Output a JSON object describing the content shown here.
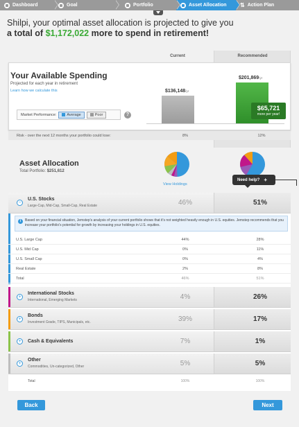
{
  "nav": {
    "steps": [
      {
        "label": "Dashboard",
        "active": false
      },
      {
        "label": "Goal",
        "active": false
      },
      {
        "label": "Portfolio",
        "active": false
      },
      {
        "label": "Asset Allocation",
        "active": true
      },
      {
        "label": "Action Plan",
        "active": false
      }
    ]
  },
  "headline": {
    "line1": "Shilpi, your optimal asset allocation is projected to give you",
    "prefix": "a total of ",
    "amount": "$1,172,022",
    "suffix": " more to spend in retirement!"
  },
  "columns": {
    "current": "Current",
    "recommended": "Recommended"
  },
  "spending": {
    "title": "Your Available Spending",
    "subtitle": "Projected for each year in retirement",
    "link": "Learn how we calculate this",
    "market_label": "Market Performance:",
    "market_options": [
      "Average",
      "Poor"
    ],
    "market_selected": "Average",
    "current_value": "$136,148",
    "recommended_value": "$201,869",
    "unit": "/yr",
    "more_amount": "$65,721",
    "more_text": "more per year!",
    "risk_label": "Risk - over the next 12 months your portfolio could lose:",
    "risk_current": "8%",
    "risk_recommended": "12%"
  },
  "allocation": {
    "title": "Asset Allocation",
    "total_label": "Total Portfolio:",
    "total_value": "$251,612",
    "view_holdings": "View Holdings",
    "need_help": "Need help?",
    "pie_colors": [
      "#3498db",
      "#f39c12",
      "#9b59b6",
      "#8bc34a",
      "#bdbdbd",
      "#c0178a"
    ]
  },
  "us_stocks": {
    "name": "U.S. Stocks",
    "sub": "Large-Cap, Mid-Cap, Small-Cap, Real Estate",
    "current": "46%",
    "recommended": "51%",
    "info": "Based on your financial situation, Jemstep's analysis of your current portfolio shows that it's not weighted heavily enough in U.S. equities. Jemstep recommends that you increase your portfolio's potential for growth by increasing your holdings in U.S. equities.",
    "rows": [
      {
        "name": "U.S. Large Cap",
        "current": "44%",
        "recommended": "28%"
      },
      {
        "name": "U.S. Mid Cap",
        "current": "0%",
        "recommended": "11%"
      },
      {
        "name": "U.S. Small Cap",
        "current": "0%",
        "recommended": "4%"
      },
      {
        "name": "Real Estate",
        "current": "2%",
        "recommended": "8%"
      },
      {
        "name": "Total",
        "current": "46%",
        "recommended": "51%"
      }
    ]
  },
  "categories": [
    {
      "name": "International Stocks",
      "sub": "International, Emerging Markets",
      "current": "4%",
      "recommended": "26%",
      "color": "#c0178a"
    },
    {
      "name": "Bonds",
      "sub": "Investment Grade, TIPS, Municipals, etc.",
      "current": "39%",
      "recommended": "17%",
      "color": "#f39c12"
    },
    {
      "name": "Cash & Equivalents",
      "sub": "",
      "current": "7%",
      "recommended": "1%",
      "color": "#8bc34a"
    },
    {
      "name": "Other",
      "sub": "Commodities, Un-categorized, Other",
      "current": "5%",
      "recommended": "5%",
      "color": "#bdbdbd"
    }
  ],
  "grand_total": {
    "label": "Total",
    "current": "100%",
    "recommended": "100%"
  },
  "buttons": {
    "back": "Back",
    "next": "Next"
  }
}
